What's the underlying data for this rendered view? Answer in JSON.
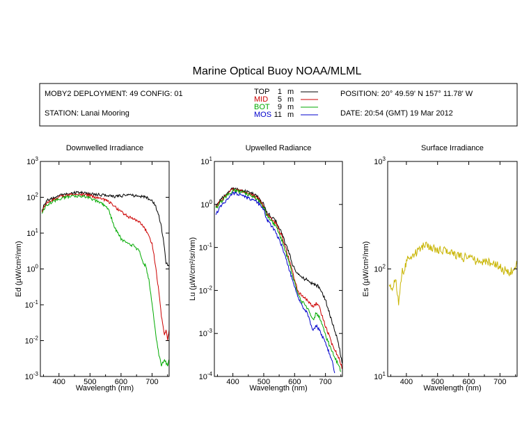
{
  "title": "Marine Optical Buoy NOAA/MLML",
  "info": {
    "deployment": "MOBY2 DEPLOYMENT: 49 CONFIG: 01",
    "station": "STATION: Lanai Mooring",
    "position": "POSITION: 20° 49.59' N   157° 11.78' W",
    "date": "DATE: 20:54 (GMT) 19 Mar 2012"
  },
  "legend": [
    {
      "name": "TOP",
      "depth": "1",
      "unit": "m",
      "color": "#000000"
    },
    {
      "name": "MID",
      "depth": "5",
      "unit": "m",
      "color": "#cc0000"
    },
    {
      "name": "BOT",
      "depth": "9",
      "unit": "m",
      "color": "#00aa00"
    },
    {
      "name": "MOS",
      "depth": "11",
      "unit": "m",
      "color": "#0000cc"
    }
  ],
  "colors": {
    "surface": "#c8b400"
  },
  "chart_data": [
    {
      "type": "line",
      "title": "Downwelled Irradiance",
      "xlabel": "Wavelength (nm)",
      "ylabel": "Ed  (µW/cm²/nm)",
      "xlim": [
        340,
        755
      ],
      "ylim": [
        0.001,
        1000
      ],
      "yscale": "log",
      "xticks": [
        400,
        500,
        600,
        700
      ],
      "yticks": [
        {
          "value": 0.001,
          "base": "10",
          "exp": "-3"
        },
        {
          "value": 0.01,
          "base": "10",
          "exp": "-2"
        },
        {
          "value": 0.1,
          "base": "10",
          "exp": "-1"
        },
        {
          "value": 1,
          "base": "10",
          "exp": "0"
        },
        {
          "value": 10,
          "base": "10",
          "exp": "1"
        },
        {
          "value": 100,
          "base": "10",
          "exp": "2"
        },
        {
          "value": 1000,
          "base": "10",
          "exp": "3"
        }
      ],
      "series": [
        {
          "name": "TOP",
          "color": "#000000",
          "x": [
            345,
            360,
            380,
            400,
            420,
            440,
            460,
            480,
            500,
            520,
            540,
            560,
            580,
            600,
            620,
            640,
            660,
            680,
            700,
            710,
            720,
            730,
            740,
            745,
            750,
            755
          ],
          "y": [
            45,
            80,
            95,
            110,
            120,
            130,
            135,
            130,
            125,
            120,
            115,
            110,
            105,
            110,
            115,
            112,
            108,
            100,
            80,
            60,
            35,
            15,
            4,
            1.5,
            1.3,
            1.3
          ]
        },
        {
          "name": "MID",
          "color": "#cc0000",
          "x": [
            345,
            360,
            380,
            400,
            420,
            440,
            460,
            480,
            500,
            520,
            540,
            560,
            580,
            600,
            620,
            640,
            660,
            680,
            700,
            710,
            720,
            730,
            740,
            745,
            750,
            755
          ],
          "y": [
            40,
            70,
            85,
            100,
            110,
            118,
            120,
            118,
            112,
            100,
            90,
            75,
            55,
            40,
            30,
            25,
            20,
            12,
            5,
            1.5,
            0.3,
            0.05,
            0.015,
            0.02,
            0.01,
            0.02
          ]
        },
        {
          "name": "BOT",
          "color": "#00aa00",
          "x": [
            345,
            360,
            380,
            400,
            420,
            440,
            460,
            480,
            500,
            520,
            540,
            560,
            570,
            580,
            600,
            620,
            640,
            660,
            670,
            680,
            690,
            700,
            710,
            720,
            730,
            740,
            750,
            755
          ],
          "y": [
            35,
            60,
            75,
            90,
            100,
            105,
            108,
            105,
            95,
            80,
            65,
            45,
            25,
            14,
            7,
            5,
            4.5,
            3,
            1.5,
            1.2,
            0.5,
            0.1,
            0.02,
            0.005,
            0.002,
            0.003,
            0.002,
            0.003
          ]
        }
      ]
    },
    {
      "type": "line",
      "title": "Upwelled Radiance",
      "xlabel": "Wavelength (nm)",
      "ylabel": "Lu  (µW/cm²/sr/nm)",
      "xlim": [
        340,
        755
      ],
      "ylim": [
        0.0001,
        10
      ],
      "yscale": "log",
      "xticks": [
        400,
        500,
        600,
        700
      ],
      "yticks": [
        {
          "value": 0.0001,
          "base": "10",
          "exp": "-4"
        },
        {
          "value": 0.001,
          "base": "10",
          "exp": "-3"
        },
        {
          "value": 0.01,
          "base": "10",
          "exp": "-2"
        },
        {
          "value": 0.1,
          "base": "10",
          "exp": "-1"
        },
        {
          "value": 1,
          "base": "10",
          "exp": "0"
        },
        {
          "value": 10,
          "base": "10",
          "exp": "1"
        }
      ],
      "series": [
        {
          "name": "TOP",
          "color": "#000000",
          "x": [
            345,
            360,
            380,
            400,
            420,
            440,
            460,
            480,
            500,
            510,
            520,
            540,
            560,
            580,
            600,
            620,
            640,
            660,
            680,
            700,
            720,
            740,
            750,
            755
          ],
          "y": [
            0.9,
            1.3,
            1.8,
            2.3,
            2.2,
            2.0,
            1.8,
            1.5,
            1.0,
            0.65,
            0.55,
            0.4,
            0.2,
            0.08,
            0.03,
            0.02,
            0.018,
            0.014,
            0.012,
            0.006,
            0.002,
            0.0007,
            0.0003,
            0.0002
          ]
        },
        {
          "name": "MID",
          "color": "#cc0000",
          "x": [
            345,
            360,
            380,
            400,
            420,
            440,
            460,
            480,
            500,
            510,
            520,
            540,
            560,
            580,
            600,
            610,
            620,
            640,
            660,
            670,
            680,
            700,
            720,
            740,
            750,
            755
          ],
          "y": [
            0.85,
            1.2,
            1.7,
            2.2,
            2.1,
            1.9,
            1.7,
            1.4,
            0.9,
            0.6,
            0.5,
            0.35,
            0.17,
            0.06,
            0.018,
            0.01,
            0.008,
            0.006,
            0.004,
            0.005,
            0.004,
            0.0015,
            0.0006,
            0.0003,
            0.0002,
            0.00015
          ]
        },
        {
          "name": "BOT",
          "color": "#00aa00",
          "x": [
            345,
            360,
            380,
            400,
            420,
            440,
            460,
            480,
            500,
            510,
            520,
            540,
            560,
            580,
            600,
            610,
            620,
            640,
            660,
            670,
            680,
            700,
            720,
            740,
            750
          ],
          "y": [
            0.8,
            1.1,
            1.6,
            2.1,
            2.0,
            1.8,
            1.6,
            1.3,
            0.85,
            0.55,
            0.45,
            0.3,
            0.14,
            0.05,
            0.015,
            0.008,
            0.006,
            0.004,
            0.002,
            0.003,
            0.0025,
            0.0009,
            0.0004,
            0.0002,
            0.00013
          ]
        },
        {
          "name": "MOS",
          "color": "#0000cc",
          "x": [
            345,
            360,
            380,
            400,
            420,
            440,
            460,
            480,
            500,
            510,
            520,
            540,
            560,
            580,
            600,
            610,
            620,
            640,
            660,
            670,
            680,
            700,
            720,
            730
          ],
          "y": [
            0.6,
            0.9,
            1.3,
            1.8,
            1.7,
            1.5,
            1.3,
            1.1,
            0.75,
            0.45,
            0.35,
            0.22,
            0.1,
            0.035,
            0.012,
            0.007,
            0.005,
            0.003,
            0.0012,
            0.0015,
            0.0012,
            0.0006,
            0.00025,
            0.00012
          ]
        }
      ]
    },
    {
      "type": "line",
      "title": "Surface Irradiance",
      "xlabel": "Wavelength (nm)",
      "ylabel": "Es  (µW/cm²/nm)",
      "xlim": [
        340,
        755
      ],
      "ylim": [
        10,
        1000
      ],
      "yscale": "log",
      "xticks": [
        400,
        500,
        600,
        700
      ],
      "yticks": [
        {
          "value": 10,
          "base": "10",
          "exp": "1"
        },
        {
          "value": 100,
          "base": "10",
          "exp": "2"
        },
        {
          "value": 1000,
          "base": "10",
          "exp": "3"
        }
      ],
      "series": [
        {
          "name": "Es",
          "color": "#c8b400",
          "x": [
            345,
            355,
            365,
            375,
            385,
            395,
            400,
            410,
            420,
            430,
            440,
            450,
            460,
            480,
            500,
            520,
            540,
            560,
            580,
            600,
            620,
            640,
            660,
            680,
            700,
            710,
            720,
            730,
            740,
            750,
            755
          ],
          "y": [
            75,
            62,
            80,
            50,
            92,
            100,
            120,
            128,
            132,
            140,
            148,
            158,
            165,
            158,
            150,
            148,
            142,
            135,
            128,
            128,
            120,
            118,
            115,
            112,
            105,
            95,
            100,
            90,
            100,
            110,
            110
          ]
        }
      ]
    }
  ]
}
